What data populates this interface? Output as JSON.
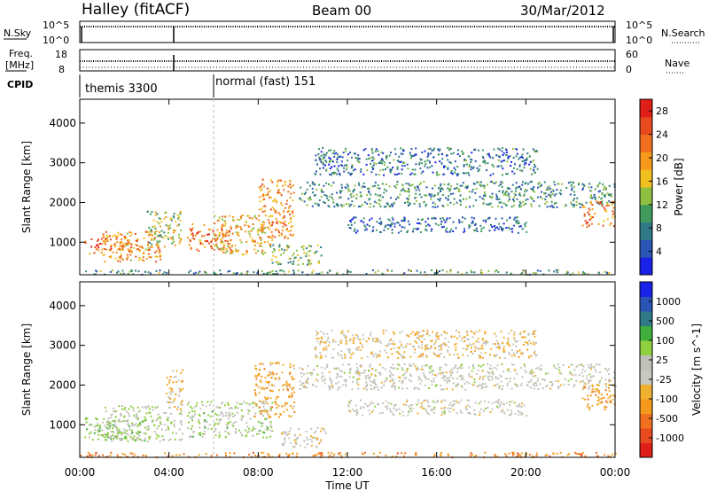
{
  "header": {
    "title": "Halley (fitACF)",
    "beam": "Beam 00",
    "date": "30/Mar/2012"
  },
  "noise_panel": {
    "left_label": "N.Sky",
    "right_label": "N.Search",
    "left_ticks": [
      "10^5",
      "10^0"
    ],
    "right_ticks": [
      "10^5",
      "10^0"
    ]
  },
  "freq_panel": {
    "left_label_1": "Freq.",
    "left_label_2": "[MHz]",
    "right_label": "Nave",
    "left_ticks": [
      "18",
      "8"
    ],
    "right_ticks": [
      "60",
      "0"
    ]
  },
  "cpid_panel": {
    "label": "CPID",
    "segments": [
      {
        "text": "themis 3300",
        "start_hour": 0
      },
      {
        "text": "normal (fast) 151",
        "start_hour": 6
      }
    ]
  },
  "x_axis": {
    "label": "Time UT",
    "tick_labels": [
      "00:00",
      "04:00",
      "08:00",
      "12:00",
      "16:00",
      "20:00",
      "00:00"
    ],
    "range_hours": [
      0,
      24
    ]
  },
  "chart_data": [
    {
      "type": "heatmap",
      "name": "power",
      "ylabel": "Slant Range [km]",
      "y_ticks": [
        "1000",
        "2000",
        "3000",
        "4000"
      ],
      "ylim": [
        180,
        4600
      ],
      "xlim_hours": [
        0,
        24
      ],
      "colorbar": {
        "label": "Power [dB]",
        "tick_labels": [
          "4",
          "8",
          "12",
          "16",
          "20",
          "24",
          "28"
        ],
        "range": [
          0,
          30
        ],
        "colors": [
          "#1a22e8",
          "#2b55b4",
          "#2f7a86",
          "#3f9a5c",
          "#8fbf40",
          "#f0c020",
          "#f59a1c",
          "#f07020",
          "#e84a20",
          "#e02018"
        ]
      },
      "regions": [
        {
          "t": [
            0.2,
            2.6
          ],
          "r": [
            700,
            1150
          ],
          "v": 22
        },
        {
          "t": [
            1.0,
            3.6
          ],
          "r": [
            500,
            1300
          ],
          "v": 20
        },
        {
          "t": [
            3.0,
            4.6
          ],
          "r": [
            900,
            1800
          ],
          "v": 14
        },
        {
          "t": [
            4.8,
            6.8
          ],
          "r": [
            800,
            1500
          ],
          "v": 23
        },
        {
          "t": [
            6.0,
            8.6
          ],
          "r": [
            700,
            1700
          ],
          "v": 18
        },
        {
          "t": [
            8.0,
            9.6
          ],
          "r": [
            1100,
            2600
          ],
          "v": 21
        },
        {
          "t": [
            8.5,
            10.8
          ],
          "r": [
            450,
            950
          ],
          "v": 12
        },
        {
          "t": [
            9.8,
            24.0
          ],
          "r": [
            1900,
            2550
          ],
          "v": 9
        },
        {
          "t": [
            12.0,
            20.0
          ],
          "r": [
            1250,
            1650
          ],
          "v": 6
        },
        {
          "t": [
            10.5,
            20.5
          ],
          "r": [
            2700,
            3400
          ],
          "v": 7
        },
        {
          "t": [
            22.5,
            24.0
          ],
          "r": [
            1400,
            2050
          ],
          "v": 22
        },
        {
          "t": [
            0.0,
            24.0
          ],
          "r": [
            200,
            320
          ],
          "v": 10
        }
      ]
    },
    {
      "type": "heatmap",
      "name": "velocity",
      "ylabel": "Slant Range [km]",
      "y_ticks": [
        "1000",
        "2000",
        "3000",
        "4000"
      ],
      "ylim": [
        180,
        4600
      ],
      "xlim_hours": [
        0,
        24
      ],
      "colorbar": {
        "label": "Velocity [m s^-1]",
        "tick_labels": [
          "1000",
          "500",
          "100",
          "25",
          "-25",
          "-100",
          "-500",
          "-1000"
        ],
        "range": [
          -1200,
          1200
        ],
        "colors": [
          "#e02018",
          "#e84a20",
          "#f07020",
          "#f59a1c",
          "#f0b030",
          "#c8c8c0",
          "#c0c0b8",
          "#8fcf40",
          "#3fae3c",
          "#2f7a86",
          "#2b55b4",
          "#1a22e8"
        ]
      },
      "regions": [
        {
          "t": [
            0.2,
            3.0
          ],
          "r": [
            600,
            1200
          ],
          "v": 300
        },
        {
          "t": [
            1.0,
            4.6
          ],
          "r": [
            600,
            1500
          ],
          "v": 150
        },
        {
          "t": [
            3.8,
            4.6
          ],
          "r": [
            1400,
            2400
          ],
          "v": -300
        },
        {
          "t": [
            4.8,
            8.6
          ],
          "r": [
            700,
            1600
          ],
          "v": 180
        },
        {
          "t": [
            7.8,
            9.6
          ],
          "r": [
            1200,
            2600
          ],
          "v": -400
        },
        {
          "t": [
            9.0,
            11.0
          ],
          "r": [
            450,
            950
          ],
          "v": -80
        },
        {
          "t": [
            9.8,
            24.0
          ],
          "r": [
            1900,
            2550
          ],
          "v": 0
        },
        {
          "t": [
            12.0,
            20.0
          ],
          "r": [
            1250,
            1650
          ],
          "v": 5
        },
        {
          "t": [
            10.5,
            20.5
          ],
          "r": [
            2700,
            3400
          ],
          "v": -200
        },
        {
          "t": [
            22.5,
            24.0
          ],
          "r": [
            1400,
            2050
          ],
          "v": -450
        },
        {
          "t": [
            0.0,
            24.0
          ],
          "r": [
            200,
            320
          ],
          "v": -600
        }
      ]
    }
  ]
}
